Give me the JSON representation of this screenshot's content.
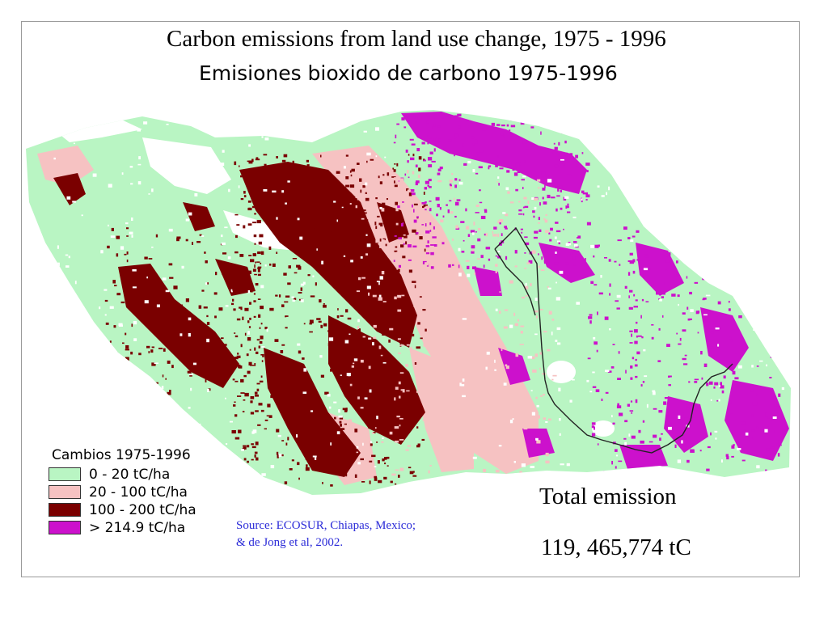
{
  "title": "Carbon emissions from land use change, 1975 - 1996",
  "subtitle": "Emisiones bioxido de carbono 1975-1996",
  "legend": {
    "title": "Cambios 1975-1996",
    "items": [
      {
        "label": "0 - 20 tC/ha",
        "color": "#b9f5c3"
      },
      {
        "label": "20 - 100 tC/ha",
        "color": "#f6c2c2"
      },
      {
        "label": "100 - 200 tC/ha",
        "color": "#7a0000"
      },
      {
        "label": "> 214.9 tC/ha",
        "color": "#cc11cc"
      }
    ]
  },
  "source": {
    "line1": "Source:  ECOSUR, Chiapas, Mexico;",
    "line2": "& de Jong et al, 2002."
  },
  "total": {
    "label": "Total emission",
    "value": "119, 465,774 tC"
  },
  "colors": {
    "low": "#b9f5c3",
    "medium": "#f6c2c2",
    "high": "#7a0000",
    "very_high": "#cc11cc",
    "boundary": "#222222",
    "source_text": "#2b2bd8"
  }
}
